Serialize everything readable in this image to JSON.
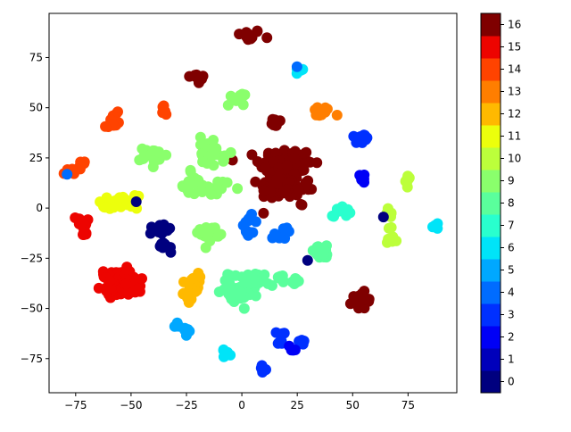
{
  "chart_data": {
    "type": "scatter",
    "title": "",
    "xlabel": "",
    "ylabel": "",
    "xlim": [
      -87,
      97
    ],
    "ylim": [
      -92,
      97
    ],
    "xticks": [
      -75,
      -50,
      -25,
      0,
      25,
      50,
      75
    ],
    "yticks": [
      -75,
      -50,
      -25,
      0,
      25,
      50,
      75
    ],
    "grid": false,
    "colorbar": {
      "levels": 17,
      "ticks": [
        0,
        1,
        2,
        3,
        4,
        5,
        6,
        7,
        8,
        9,
        10,
        11,
        12,
        13,
        14,
        15,
        16
      ],
      "colors": [
        "#00007f",
        "#0000bb",
        "#0000f6",
        "#0030ff",
        "#006cff",
        "#00a8ff",
        "#00e4f8",
        "#29ffce",
        "#5aff9c",
        "#8aff6c",
        "#bcff3b",
        "#ecff0c",
        "#ffb900",
        "#ff7e00",
        "#ff4300",
        "#ed0400",
        "#7f0000"
      ],
      "colormap": "jet"
    },
    "clusters": [
      {
        "cx": 3,
        "cy": 86,
        "sx": 3,
        "sy": 1.5,
        "n": 14,
        "c": 16
      },
      {
        "cx": -20,
        "cy": 65,
        "sx": 2,
        "sy": 1.5,
        "n": 10,
        "c": 16
      },
      {
        "cx": 15,
        "cy": 42,
        "sx": 2,
        "sy": 1.5,
        "n": 10,
        "c": 16
      },
      {
        "cx": 20,
        "cy": 22,
        "sx": 6,
        "sy": 4,
        "n": 120,
        "c": 16
      },
      {
        "cx": 16,
        "cy": 10,
        "sx": 4,
        "sy": 3,
        "n": 60,
        "c": 16
      },
      {
        "cx": 28,
        "cy": 10,
        "sx": 2,
        "sy": 1.5,
        "n": 12,
        "c": 16
      },
      {
        "cx": 27,
        "cy": 2,
        "sx": 0.5,
        "sy": 0.5,
        "n": 2,
        "c": 16
      },
      {
        "cx": 54,
        "cy": -46,
        "sx": 2,
        "sy": 2,
        "n": 20,
        "c": 16
      },
      {
        "cx": -56,
        "cy": -34,
        "sx": 3,
        "sy": 2,
        "n": 40,
        "c": 15
      },
      {
        "cx": -57,
        "cy": -40,
        "sx": 3,
        "sy": 2,
        "n": 40,
        "c": 15
      },
      {
        "cx": -49,
        "cy": -39,
        "sx": 2,
        "sy": 2,
        "n": 20,
        "c": 15
      },
      {
        "cx": -73,
        "cy": -7,
        "sx": 1.5,
        "sy": 1.5,
        "n": 10,
        "c": 15
      },
      {
        "cx": -71,
        "cy": -13,
        "sx": 0.8,
        "sy": 0.8,
        "n": 5,
        "c": 15
      },
      {
        "cx": -73,
        "cy": 21,
        "sx": 1.5,
        "sy": 1.5,
        "n": 8,
        "c": 14
      },
      {
        "cx": -78,
        "cy": 18,
        "sx": 1.2,
        "sy": 1,
        "n": 6,
        "c": 14
      },
      {
        "cx": -57,
        "cy": 46,
        "sx": 1.5,
        "sy": 1.2,
        "n": 6,
        "c": 14
      },
      {
        "cx": -59,
        "cy": 41,
        "sx": 1.5,
        "sy": 1.2,
        "n": 6,
        "c": 14
      },
      {
        "cx": -36,
        "cy": 49,
        "sx": 1.5,
        "sy": 1.5,
        "n": 8,
        "c": 14
      },
      {
        "cx": 36,
        "cy": 48,
        "sx": 2.5,
        "sy": 1.5,
        "n": 14,
        "c": 13
      },
      {
        "cx": -22,
        "cy": -36,
        "sx": 2,
        "sy": 2,
        "n": 14,
        "c": 12
      },
      {
        "cx": -22,
        "cy": -42,
        "sx": 2,
        "sy": 2,
        "n": 14,
        "c": 12
      },
      {
        "cx": -52,
        "cy": 3,
        "sx": 2.5,
        "sy": 1.5,
        "n": 16,
        "c": 11
      },
      {
        "cx": -60,
        "cy": 2,
        "sx": 2.5,
        "sy": 1.5,
        "n": 14,
        "c": 11
      },
      {
        "cx": 67,
        "cy": -3,
        "sx": 1.5,
        "sy": 1.5,
        "n": 8,
        "c": 10
      },
      {
        "cx": 67,
        "cy": -16,
        "sx": 1.5,
        "sy": 1.5,
        "n": 8,
        "c": 10
      },
      {
        "cx": 75,
        "cy": 13,
        "sx": 1,
        "sy": 1.5,
        "n": 8,
        "c": 10
      },
      {
        "cx": 67,
        "cy": -10,
        "sx": 0.6,
        "sy": 0.6,
        "n": 2,
        "c": 10
      },
      {
        "cx": -40,
        "cy": 26,
        "sx": 3,
        "sy": 2,
        "n": 30,
        "c": 9
      },
      {
        "cx": -15,
        "cy": 32,
        "sx": 2,
        "sy": 2,
        "n": 14,
        "c": 9
      },
      {
        "cx": -14,
        "cy": 25,
        "sx": 3,
        "sy": 2,
        "n": 22,
        "c": 9
      },
      {
        "cx": -2,
        "cy": 55,
        "sx": 2,
        "sy": 2,
        "n": 12,
        "c": 9
      },
      {
        "cx": -22,
        "cy": 11,
        "sx": 3,
        "sy": 2,
        "n": 18,
        "c": 9
      },
      {
        "cx": -11,
        "cy": 10,
        "sx": 3,
        "sy": 2,
        "n": 16,
        "c": 9
      },
      {
        "cx": -15,
        "cy": -12,
        "sx": 2.5,
        "sy": 2,
        "n": 22,
        "c": 9
      },
      {
        "cx": -23,
        "cy": 18,
        "sx": 0.5,
        "sy": 0.5,
        "n": 2,
        "c": 9
      },
      {
        "cx": 2,
        "cy": -38,
        "sx": 4,
        "sy": 3,
        "n": 50,
        "c": 8
      },
      {
        "cx": -3,
        "cy": -44,
        "sx": 3,
        "sy": 2,
        "n": 25,
        "c": 8
      },
      {
        "cx": 18,
        "cy": -35,
        "sx": 1.5,
        "sy": 1.2,
        "n": 8,
        "c": 8
      },
      {
        "cx": 24,
        "cy": -37,
        "sx": 1.5,
        "sy": 1.2,
        "n": 8,
        "c": 8
      },
      {
        "cx": 36,
        "cy": -22,
        "sx": 3,
        "sy": 1.5,
        "n": 20,
        "c": 8
      },
      {
        "cx": 45,
        "cy": -1,
        "sx": 2,
        "sy": 1.5,
        "n": 14,
        "c": 7
      },
      {
        "cx": 26,
        "cy": 69,
        "sx": 1.2,
        "sy": 1.2,
        "n": 6,
        "c": 6
      },
      {
        "cx": 88,
        "cy": -9,
        "sx": 0.8,
        "sy": 0.8,
        "n": 4,
        "c": 6
      },
      {
        "cx": -7,
        "cy": -73,
        "sx": 1.2,
        "sy": 1,
        "n": 6,
        "c": 6
      },
      {
        "cx": -24,
        "cy": -61,
        "sx": 1.5,
        "sy": 1,
        "n": 6,
        "c": 5
      },
      {
        "cx": -30,
        "cy": -59,
        "sx": 1,
        "sy": 0.8,
        "n": 4,
        "c": 5
      },
      {
        "cx": 3,
        "cy": -6,
        "sx": 1.5,
        "sy": 1.2,
        "n": 8,
        "c": 4
      },
      {
        "cx": 2,
        "cy": -13,
        "sx": 1.5,
        "sy": 1.2,
        "n": 8,
        "c": 4
      },
      {
        "cx": 16,
        "cy": -15,
        "sx": 1.5,
        "sy": 1.5,
        "n": 8,
        "c": 4
      },
      {
        "cx": 20,
        "cy": -10,
        "sx": 1,
        "sy": 1,
        "n": 4,
        "c": 4
      },
      {
        "cx": 25,
        "cy": 71,
        "sx": 0.4,
        "sy": 0.4,
        "n": 1,
        "c": 4
      },
      {
        "cx": -78,
        "cy": 17,
        "sx": 0.4,
        "sy": 0.4,
        "n": 1,
        "c": 4
      },
      {
        "cx": 53,
        "cy": 34,
        "sx": 2,
        "sy": 1.5,
        "n": 10,
        "c": 3
      },
      {
        "cx": 56,
        "cy": 35,
        "sx": 0.8,
        "sy": 0.8,
        "n": 3,
        "c": 3
      },
      {
        "cx": 18,
        "cy": -63,
        "sx": 1,
        "sy": 1,
        "n": 4,
        "c": 3
      },
      {
        "cx": 17,
        "cy": -67,
        "sx": 1,
        "sy": 1,
        "n": 4,
        "c": 3
      },
      {
        "cx": 27,
        "cy": -66,
        "sx": 1.2,
        "sy": 1,
        "n": 4,
        "c": 3
      },
      {
        "cx": 9,
        "cy": -80,
        "sx": 1.5,
        "sy": 1.5,
        "n": 8,
        "c": 3
      },
      {
        "cx": 54,
        "cy": 16,
        "sx": 1.2,
        "sy": 1.2,
        "n": 8,
        "c": 2
      },
      {
        "cx": 23,
        "cy": -70,
        "sx": 1,
        "sy": 1,
        "n": 4,
        "c": 2
      },
      {
        "cx": -37,
        "cy": -11,
        "sx": 2,
        "sy": 1.5,
        "n": 16,
        "c": 0
      },
      {
        "cx": -34,
        "cy": -19,
        "sx": 1.5,
        "sy": 1.5,
        "n": 10,
        "c": 0
      },
      {
        "cx": -48,
        "cy": 3,
        "sx": 0.4,
        "sy": 0.4,
        "n": 1,
        "c": 0
      },
      {
        "cx": 64,
        "cy": -4,
        "sx": 0.4,
        "sy": 0.4,
        "n": 1,
        "c": 0
      },
      {
        "cx": 29,
        "cy": -26,
        "sx": 0.4,
        "sy": 0.4,
        "n": 1,
        "c": 0
      }
    ]
  }
}
